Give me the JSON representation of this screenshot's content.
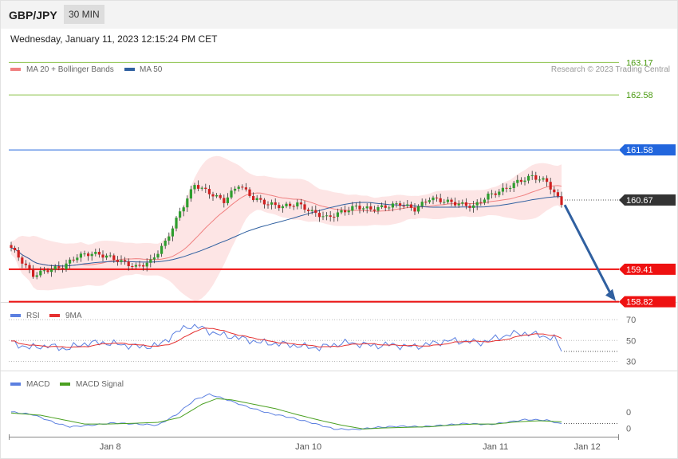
{
  "header": {
    "symbol": "GBP/JPY",
    "timeframe": "30 MIN",
    "datetime": "Wednesday, January 11, 2023 12:15:24 PM CET"
  },
  "colors": {
    "ma20": "#f08080",
    "ma50": "#3060a0",
    "band_fill": "#fde0e0",
    "level_green": "#8bc34a",
    "level_green_text": "#4a9a10",
    "level_blue": "#2266dd",
    "level_red": "#ee1111",
    "current_price": "#333333",
    "candle_up": "#2e9e2e",
    "candle_down": "#d02020",
    "rsi": "#5b7fe0",
    "rsi_ma": "#e53030",
    "macd": "#5b7fe0",
    "macd_signal": "#4aa020",
    "arrow": "#3060a0"
  },
  "chart_data": [
    {
      "type": "candlestick",
      "legend": [
        {
          "name": "MA 20 + Bollinger Bands",
          "color": "#f08080"
        },
        {
          "name": "MA 50",
          "color": "#3060a0"
        }
      ],
      "credit": "Research © 2023 Trading Central",
      "ylim": [
        158.8,
        163.35
      ],
      "levels": [
        {
          "value": 163.17,
          "label": "163.17",
          "kind": "green"
        },
        {
          "value": 162.58,
          "label": "162.58",
          "kind": "green"
        },
        {
          "value": 161.58,
          "label": "161.58",
          "kind": "blue"
        },
        {
          "value": 160.67,
          "label": "160.67",
          "kind": "current"
        },
        {
          "value": 159.41,
          "label": "159.41",
          "kind": "red"
        },
        {
          "value": 158.82,
          "label": "158.82",
          "kind": "red"
        }
      ],
      "anchors": [
        [
          0,
          159.8
        ],
        [
          3,
          159.55
        ],
        [
          6,
          159.3
        ],
        [
          10,
          159.4
        ],
        [
          14,
          159.45
        ],
        [
          18,
          159.65
        ],
        [
          22,
          159.7
        ],
        [
          26,
          159.65
        ],
        [
          30,
          159.55
        ],
        [
          34,
          159.45
        ],
        [
          38,
          159.55
        ],
        [
          42,
          159.9
        ],
        [
          46,
          160.45
        ],
        [
          50,
          160.95
        ],
        [
          54,
          160.8
        ],
        [
          58,
          160.65
        ],
        [
          62,
          160.95
        ],
        [
          66,
          160.7
        ],
        [
          70,
          160.6
        ],
        [
          74,
          160.55
        ],
        [
          78,
          160.6
        ],
        [
          82,
          160.45
        ],
        [
          86,
          160.35
        ],
        [
          90,
          160.45
        ],
        [
          94,
          160.55
        ],
        [
          98,
          160.5
        ],
        [
          102,
          160.55
        ],
        [
          106,
          160.6
        ],
        [
          110,
          160.5
        ],
        [
          114,
          160.7
        ],
        [
          118,
          160.65
        ],
        [
          122,
          160.6
        ],
        [
          126,
          160.55
        ],
        [
          130,
          160.75
        ],
        [
          134,
          160.85
        ],
        [
          138,
          161.0
        ],
        [
          142,
          161.1
        ],
        [
          146,
          161.0
        ],
        [
          150,
          160.6
        ]
      ],
      "n_candles": 151,
      "forecast_target": 158.82,
      "x_ticks": [
        {
          "label": "Jan 8",
          "i": 27
        },
        {
          "label": "Jan 10",
          "i": 81
        },
        {
          "label": "Jan 11",
          "i": 132
        },
        {
          "label": "Jan 12",
          "i": 157
        }
      ]
    },
    {
      "type": "line",
      "legend": [
        {
          "name": "RSI",
          "color": "#5b7fe0"
        },
        {
          "name": "9MA",
          "color": "#e53030"
        }
      ],
      "ylim": [
        25,
        80
      ],
      "y_ticks": [
        70,
        50,
        30
      ],
      "anchors": [
        [
          0,
          48
        ],
        [
          5,
          43
        ],
        [
          10,
          45
        ],
        [
          15,
          42
        ],
        [
          20,
          47
        ],
        [
          25,
          48
        ],
        [
          30,
          46
        ],
        [
          35,
          44
        ],
        [
          40,
          45
        ],
        [
          44,
          55
        ],
        [
          48,
          64
        ],
        [
          52,
          62
        ],
        [
          56,
          56
        ],
        [
          60,
          54
        ],
        [
          64,
          51
        ],
        [
          68,
          48
        ],
        [
          72,
          47
        ],
        [
          76,
          46
        ],
        [
          80,
          44
        ],
        [
          84,
          43
        ],
        [
          88,
          46
        ],
        [
          92,
          48
        ],
        [
          96,
          46
        ],
        [
          100,
          45
        ],
        [
          104,
          46
        ],
        [
          108,
          44
        ],
        [
          112,
          45
        ],
        [
          116,
          48
        ],
        [
          120,
          50
        ],
        [
          124,
          49
        ],
        [
          128,
          48
        ],
        [
          132,
          52
        ],
        [
          136,
          56
        ],
        [
          140,
          57
        ],
        [
          144,
          55
        ],
        [
          148,
          52
        ],
        [
          150,
          41
        ]
      ]
    },
    {
      "type": "line",
      "legend": [
        {
          "name": "MACD",
          "color": "#5b7fe0"
        },
        {
          "name": "MACD Signal",
          "color": "#4aa020"
        }
      ],
      "ylim": [
        -0.45,
        0.65
      ],
      "y_ticks": [
        {
          "label": "0",
          "value": 0.0
        },
        {
          "label": "0",
          "value": -0.3
        }
      ],
      "macd_anchors": [
        [
          0,
          0.0
        ],
        [
          6,
          -0.05
        ],
        [
          12,
          -0.2
        ],
        [
          16,
          -0.27
        ],
        [
          22,
          -0.24
        ],
        [
          28,
          -0.2
        ],
        [
          34,
          -0.22
        ],
        [
          40,
          -0.24
        ],
        [
          45,
          -0.05
        ],
        [
          50,
          0.22
        ],
        [
          54,
          0.32
        ],
        [
          58,
          0.24
        ],
        [
          64,
          0.1
        ],
        [
          70,
          -0.02
        ],
        [
          76,
          -0.1
        ],
        [
          82,
          -0.2
        ],
        [
          88,
          -0.31
        ],
        [
          94,
          -0.32
        ],
        [
          100,
          -0.28
        ],
        [
          106,
          -0.26
        ],
        [
          112,
          -0.27
        ],
        [
          118,
          -0.24
        ],
        [
          124,
          -0.21
        ],
        [
          130,
          -0.23
        ],
        [
          134,
          -0.2
        ],
        [
          140,
          -0.14
        ],
        [
          146,
          -0.15
        ],
        [
          150,
          -0.22
        ]
      ],
      "signal_anchors": [
        [
          0,
          -0.02
        ],
        [
          8,
          -0.06
        ],
        [
          14,
          -0.14
        ],
        [
          20,
          -0.22
        ],
        [
          26,
          -0.22
        ],
        [
          32,
          -0.21
        ],
        [
          40,
          -0.19
        ],
        [
          46,
          -0.1
        ],
        [
          52,
          0.14
        ],
        [
          56,
          0.24
        ],
        [
          60,
          0.22
        ],
        [
          66,
          0.14
        ],
        [
          72,
          0.06
        ],
        [
          78,
          -0.05
        ],
        [
          84,
          -0.15
        ],
        [
          90,
          -0.24
        ],
        [
          96,
          -0.31
        ],
        [
          102,
          -0.29
        ],
        [
          108,
          -0.28
        ],
        [
          114,
          -0.27
        ],
        [
          120,
          -0.24
        ],
        [
          126,
          -0.22
        ],
        [
          132,
          -0.22
        ],
        [
          138,
          -0.18
        ],
        [
          144,
          -0.16
        ],
        [
          150,
          -0.18
        ]
      ]
    }
  ]
}
